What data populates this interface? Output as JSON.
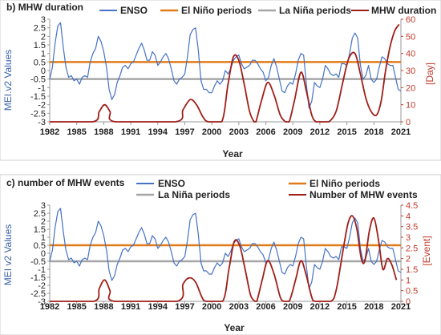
{
  "colors": {
    "enso": "#4472c4",
    "elnino": "#e07b1a",
    "lanina": "#a6a6a6",
    "mhw": "#a01e18"
  },
  "chart_data": [
    {
      "type": "line",
      "title": "b) MHW duration",
      "xlabel": "Year",
      "ylabel": "MEI.v2 Values",
      "ylabel_right": "[Day]",
      "xlim": [
        1982,
        2021
      ],
      "ylim": [
        -3,
        3
      ],
      "ylim_right": [
        0,
        60
      ],
      "x_ticks": [
        "1982",
        "1985",
        "1988",
        "1991",
        "1994",
        "1997",
        "2000",
        "2003",
        "2006",
        "2009",
        "2012",
        "2015",
        "2018",
        "2021"
      ],
      "y_ticks": [
        "3",
        "2.5",
        "2",
        "1.5",
        "1",
        "0.5",
        "0",
        "-0.5",
        "-1",
        "-1.5",
        "-2",
        "-2.5",
        "-3"
      ],
      "y_ticks_right": [
        "60",
        "50",
        "40",
        "30",
        "20",
        "10",
        "0"
      ],
      "legend": [
        "ENSO",
        "El Niño periods",
        "La Niña periods",
        "MHW duration"
      ],
      "thresholds": {
        "el_nino": 0.5,
        "la_nina": -0.5
      },
      "series": [
        {
          "name": "ENSO",
          "axis": "left",
          "points": [
            [
              1982.0,
              -0.5
            ],
            [
              1982.3,
              0.2
            ],
            [
              1982.6,
              1.6
            ],
            [
              1982.9,
              2.6
            ],
            [
              1983.2,
              2.8
            ],
            [
              1983.5,
              1.4
            ],
            [
              1983.8,
              0.2
            ],
            [
              1984.1,
              -0.4
            ],
            [
              1984.4,
              -0.3
            ],
            [
              1984.7,
              -0.6
            ],
            [
              1985.0,
              -0.5
            ],
            [
              1985.3,
              -0.8
            ],
            [
              1985.6,
              -0.4
            ],
            [
              1985.9,
              -0.3
            ],
            [
              1986.2,
              -0.4
            ],
            [
              1986.5,
              0.5
            ],
            [
              1986.8,
              1.0
            ],
            [
              1987.1,
              1.3
            ],
            [
              1987.4,
              2.0
            ],
            [
              1987.7,
              1.7
            ],
            [
              1988.0,
              1.1
            ],
            [
              1988.3,
              0.2
            ],
            [
              1988.6,
              -1.1
            ],
            [
              1988.9,
              -1.7
            ],
            [
              1989.2,
              -1.4
            ],
            [
              1989.5,
              -0.7
            ],
            [
              1989.8,
              -0.3
            ],
            [
              1990.1,
              0.2
            ],
            [
              1990.4,
              0.3
            ],
            [
              1990.7,
              0.1
            ],
            [
              1991.0,
              0.4
            ],
            [
              1991.3,
              0.5
            ],
            [
              1991.6,
              0.9
            ],
            [
              1991.9,
              1.3
            ],
            [
              1992.2,
              1.6
            ],
            [
              1992.5,
              1.2
            ],
            [
              1992.8,
              0.6
            ],
            [
              1993.1,
              0.6
            ],
            [
              1993.4,
              1.1
            ],
            [
              1993.7,
              0.9
            ],
            [
              1994.0,
              0.3
            ],
            [
              1994.3,
              0.5
            ],
            [
              1994.6,
              0.8
            ],
            [
              1994.9,
              1.0
            ],
            [
              1995.2,
              0.7
            ],
            [
              1995.5,
              0.1
            ],
            [
              1995.8,
              -0.6
            ],
            [
              1996.1,
              -0.8
            ],
            [
              1996.4,
              -0.5
            ],
            [
              1996.7,
              -0.4
            ],
            [
              1997.0,
              -0.2
            ],
            [
              1997.3,
              0.8
            ],
            [
              1997.6,
              2.1
            ],
            [
              1997.9,
              2.4
            ],
            [
              1998.2,
              2.5
            ],
            [
              1998.5,
              1.2
            ],
            [
              1998.8,
              -0.6
            ],
            [
              1999.1,
              -1.1
            ],
            [
              1999.4,
              -1.1
            ],
            [
              1999.7,
              -1.3
            ],
            [
              2000.0,
              -1.3
            ],
            [
              2000.3,
              -0.9
            ],
            [
              2000.6,
              -0.6
            ],
            [
              2000.9,
              -0.8
            ],
            [
              2001.2,
              -0.6
            ],
            [
              2001.5,
              0.0
            ],
            [
              2001.8,
              -0.2
            ],
            [
              2002.1,
              0.1
            ],
            [
              2002.4,
              0.6
            ],
            [
              2002.7,
              0.8
            ],
            [
              2003.0,
              0.9
            ],
            [
              2003.3,
              0.4
            ],
            [
              2003.6,
              0.1
            ],
            [
              2003.9,
              0.2
            ],
            [
              2004.2,
              0.3
            ],
            [
              2004.5,
              0.6
            ],
            [
              2004.8,
              0.6
            ],
            [
              2005.1,
              0.4
            ],
            [
              2005.4,
              0.1
            ],
            [
              2005.7,
              -0.1
            ],
            [
              2006.0,
              -0.6
            ],
            [
              2006.3,
              -0.4
            ],
            [
              2006.6,
              0.3
            ],
            [
              2006.9,
              0.7
            ],
            [
              2007.2,
              0.2
            ],
            [
              2007.5,
              -0.5
            ],
            [
              2007.8,
              -1.2
            ],
            [
              2008.1,
              -1.3
            ],
            [
              2008.4,
              -0.9
            ],
            [
              2008.7,
              -0.7
            ],
            [
              2009.0,
              -0.8
            ],
            [
              2009.3,
              -0.2
            ],
            [
              2009.6,
              0.6
            ],
            [
              2009.9,
              1.0
            ],
            [
              2010.2,
              0.9
            ],
            [
              2010.5,
              -0.8
            ],
            [
              2010.8,
              -2.2
            ],
            [
              2011.1,
              -1.8
            ],
            [
              2011.4,
              -0.7
            ],
            [
              2011.7,
              -0.9
            ],
            [
              2012.0,
              -1.0
            ],
            [
              2012.3,
              -0.5
            ],
            [
              2012.6,
              0.3
            ],
            [
              2012.9,
              0.1
            ],
            [
              2013.2,
              -0.2
            ],
            [
              2013.5,
              -0.3
            ],
            [
              2013.8,
              -0.2
            ],
            [
              2014.1,
              -0.4
            ],
            [
              2014.4,
              0.4
            ],
            [
              2014.7,
              0.4
            ],
            [
              2015.0,
              0.3
            ],
            [
              2015.3,
              1.0
            ],
            [
              2015.6,
              1.9
            ],
            [
              2015.9,
              2.2
            ],
            [
              2016.2,
              1.9
            ],
            [
              2016.5,
              0.3
            ],
            [
              2016.8,
              -0.5
            ],
            [
              2017.1,
              -0.3
            ],
            [
              2017.4,
              0.3
            ],
            [
              2017.7,
              -0.5
            ],
            [
              2018.0,
              -0.7
            ],
            [
              2018.3,
              -0.5
            ],
            [
              2018.6,
              0.2
            ],
            [
              2018.9,
              0.8
            ],
            [
              2019.2,
              0.7
            ],
            [
              2019.5,
              0.4
            ],
            [
              2019.8,
              0.3
            ],
            [
              2020.1,
              0.3
            ],
            [
              2020.4,
              -0.4
            ],
            [
              2020.7,
              -1.1
            ],
            [
              2021.0,
              -1.2
            ]
          ]
        },
        {
          "name": "MHW duration",
          "axis": "right",
          "points": [
            [
              1982,
              0
            ],
            [
              1986.8,
              0
            ],
            [
              1987.5,
              6
            ],
            [
              1988.1,
              10
            ],
            [
              1988.7,
              6
            ],
            [
              1989.3,
              0
            ],
            [
              1996.0,
              0
            ],
            [
              1996.8,
              7
            ],
            [
              1997.6,
              13
            ],
            [
              1998.3,
              10
            ],
            [
              1999.0,
              3
            ],
            [
              1999.6,
              0
            ],
            [
              2001.1,
              0
            ],
            [
              2001.8,
              22
            ],
            [
              2002.4,
              38
            ],
            [
              2003.0,
              36
            ],
            [
              2003.6,
              22
            ],
            [
              2004.2,
              6
            ],
            [
              2004.7,
              0
            ],
            [
              2004.9,
              0
            ],
            [
              2005.5,
              12
            ],
            [
              2006.2,
              23
            ],
            [
              2006.9,
              16
            ],
            [
              2007.6,
              4
            ],
            [
              2008.2,
              0
            ],
            [
              2008.6,
              0
            ],
            [
              2009.2,
              13
            ],
            [
              2009.9,
              29
            ],
            [
              2010.5,
              18
            ],
            [
              2011.1,
              4
            ],
            [
              2011.6,
              0
            ],
            [
              2012.3,
              0
            ],
            [
              2013.0,
              0
            ],
            [
              2013.8,
              6
            ],
            [
              2014.5,
              22
            ],
            [
              2015.2,
              37
            ],
            [
              2015.9,
              40
            ],
            [
              2016.5,
              28
            ],
            [
              2017.1,
              14
            ],
            [
              2017.7,
              6
            ],
            [
              2018.3,
              4
            ],
            [
              2018.8,
              12
            ],
            [
              2019.3,
              30
            ],
            [
              2019.8,
              44
            ],
            [
              2020.3,
              53
            ],
            [
              2020.8,
              57
            ]
          ]
        }
      ]
    },
    {
      "type": "line",
      "title": "c) number of MHW events",
      "xlabel": "Year",
      "ylabel": "MEI v2 Values",
      "ylabel_right": "[Event]",
      "xlim": [
        1982,
        2021
      ],
      "ylim": [
        -3,
        3
      ],
      "ylim_right": [
        0,
        4.5
      ],
      "x_ticks": [
        "1982",
        "1985",
        "1988",
        "1991",
        "1994",
        "1997",
        "2000",
        "2003",
        "2006",
        "2009",
        "2012",
        "2015",
        "2018",
        "2021"
      ],
      "y_ticks": [
        "3",
        "2.5",
        "2",
        "1.5",
        "1",
        "0.5",
        "0",
        "-0.5",
        "-1",
        "-1.5",
        "-2",
        "-2.5",
        "-3"
      ],
      "y_ticks_right": [
        "4.5",
        "4",
        "3.5",
        "3",
        "2.5",
        "2",
        "1.5",
        "1",
        "0.5",
        "0"
      ],
      "legend": [
        "ENSO",
        "El Niño periods",
        "La Niña periods",
        "Number of MHW events"
      ],
      "thresholds": {
        "el_nino": 0.5,
        "la_nina": -0.5
      },
      "series": [
        {
          "name": "ENSO",
          "axis": "left",
          "points": "same as panel b"
        },
        {
          "name": "Number of MHW events",
          "axis": "right",
          "points": [
            [
              1982,
              0
            ],
            [
              1986.9,
              0
            ],
            [
              1987.5,
              0.6
            ],
            [
              1988.1,
              1.0
            ],
            [
              1988.7,
              0.5
            ],
            [
              1989.2,
              0
            ],
            [
              1996.1,
              0
            ],
            [
              1996.8,
              0.8
            ],
            [
              1997.5,
              1.1
            ],
            [
              1998.2,
              0.9
            ],
            [
              1998.9,
              0.2
            ],
            [
              1999.4,
              0
            ],
            [
              2001.2,
              0
            ],
            [
              2001.9,
              1.5
            ],
            [
              2002.5,
              2.8
            ],
            [
              2003.1,
              2.6
            ],
            [
              2003.7,
              1.5
            ],
            [
              2004.3,
              0.3
            ],
            [
              2004.8,
              0
            ],
            [
              2005.0,
              0
            ],
            [
              2005.6,
              1.0
            ],
            [
              2006.2,
              1.9
            ],
            [
              2006.9,
              1.3
            ],
            [
              2007.6,
              0.2
            ],
            [
              2008.0,
              0
            ],
            [
              2008.6,
              0
            ],
            [
              2009.3,
              1.0
            ],
            [
              2009.9,
              1.9
            ],
            [
              2010.5,
              1.2
            ],
            [
              2011.1,
              0.2
            ],
            [
              2011.5,
              0
            ],
            [
              2013.2,
              0
            ],
            [
              2013.8,
              0.5
            ],
            [
              2014.5,
              2.2
            ],
            [
              2015.1,
              3.6
            ],
            [
              2015.6,
              4.0
            ],
            [
              2016.1,
              3.4
            ],
            [
              2016.6,
              2.0
            ],
            [
              2017.0,
              1.9
            ],
            [
              2017.5,
              3.3
            ],
            [
              2018.0,
              3.9
            ],
            [
              2018.5,
              2.9
            ],
            [
              2019.0,
              1.5
            ],
            [
              2019.5,
              2.0
            ],
            [
              2020.0,
              1.7
            ],
            [
              2020.5,
              1.0
            ]
          ]
        }
      ]
    }
  ]
}
